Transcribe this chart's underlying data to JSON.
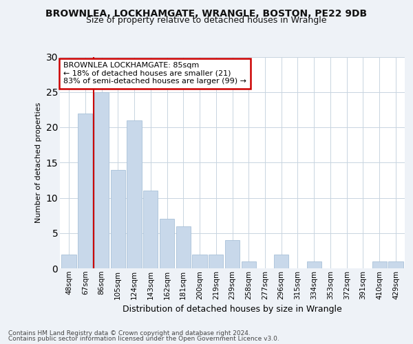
{
  "title1": "BROWNLEA, LOCKHAMGATE, WRANGLE, BOSTON, PE22 9DB",
  "title2": "Size of property relative to detached houses in Wrangle",
  "xlabel": "Distribution of detached houses by size in Wrangle",
  "ylabel": "Number of detached properties",
  "categories": [
    "48sqm",
    "67sqm",
    "86sqm",
    "105sqm",
    "124sqm",
    "143sqm",
    "162sqm",
    "181sqm",
    "200sqm",
    "219sqm",
    "239sqm",
    "258sqm",
    "277sqm",
    "296sqm",
    "315sqm",
    "334sqm",
    "353sqm",
    "372sqm",
    "391sqm",
    "410sqm",
    "429sqm"
  ],
  "values": [
    2,
    22,
    25,
    14,
    21,
    11,
    7,
    6,
    2,
    2,
    4,
    1,
    0,
    2,
    0,
    1,
    0,
    0,
    0,
    1,
    1
  ],
  "bar_color": "#c8d8ea",
  "bar_edgecolor": "#a8c0d8",
  "redline_index": 2,
  "annotation_text": "BROWNLEA LOCKHAMGATE: 85sqm\n← 18% of detached houses are smaller (21)\n83% of semi-detached houses are larger (99) →",
  "annotation_box_facecolor": "#ffffff",
  "annotation_box_edgecolor": "#cc0000",
  "ylim": [
    0,
    30
  ],
  "yticks": [
    0,
    5,
    10,
    15,
    20,
    25,
    30
  ],
  "footer1": "Contains HM Land Registry data © Crown copyright and database right 2024.",
  "footer2": "Contains public sector information licensed under the Open Government Licence v3.0.",
  "background_color": "#eef2f7",
  "plot_background": "#ffffff",
  "grid_color": "#c8d4e0",
  "title1_fontsize": 10,
  "title2_fontsize": 9,
  "xlabel_fontsize": 9,
  "ylabel_fontsize": 8,
  "tick_fontsize": 7.5,
  "footer_fontsize": 6.5,
  "annot_fontsize": 8
}
